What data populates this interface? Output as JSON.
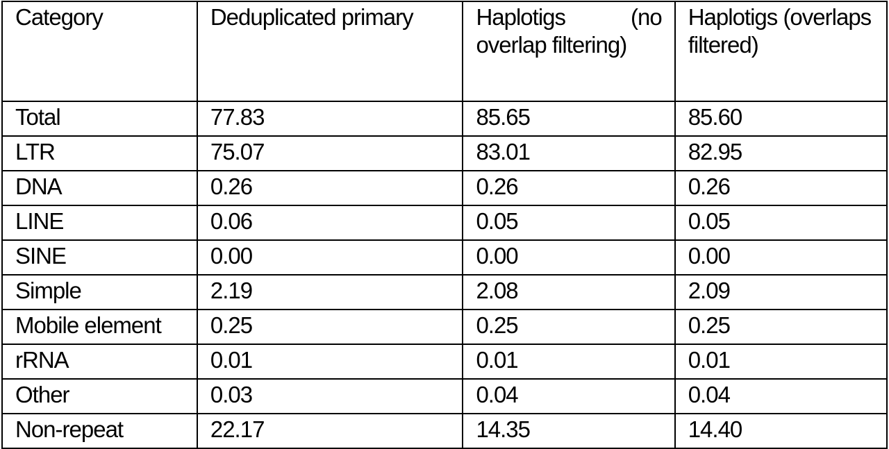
{
  "table": {
    "headers": [
      "Category",
      "Deduplicated primary",
      "Haplotigs (no overlap filtering)",
      "Haplotigs (overlaps filtered)"
    ],
    "rows": [
      [
        "Total",
        "77.83",
        "85.65",
        "85.60"
      ],
      [
        "LTR",
        "75.07",
        "83.01",
        "82.95"
      ],
      [
        "DNA",
        "0.26",
        "0.26",
        "0.26"
      ],
      [
        "LINE",
        "0.06",
        "0.05",
        "0.05"
      ],
      [
        "SINE",
        "0.00",
        "0.00",
        "0.00"
      ],
      [
        "Simple",
        "2.19",
        "2.08",
        "2.09"
      ],
      [
        "Mobile element",
        "0.25",
        "0.25",
        "0.25"
      ],
      [
        "rRNA",
        "0.01",
        "0.01",
        "0.01"
      ],
      [
        "Other",
        "0.03",
        "0.04",
        "0.04"
      ],
      [
        "Non-repeat",
        "22.17",
        "14.35",
        "14.40"
      ]
    ]
  }
}
